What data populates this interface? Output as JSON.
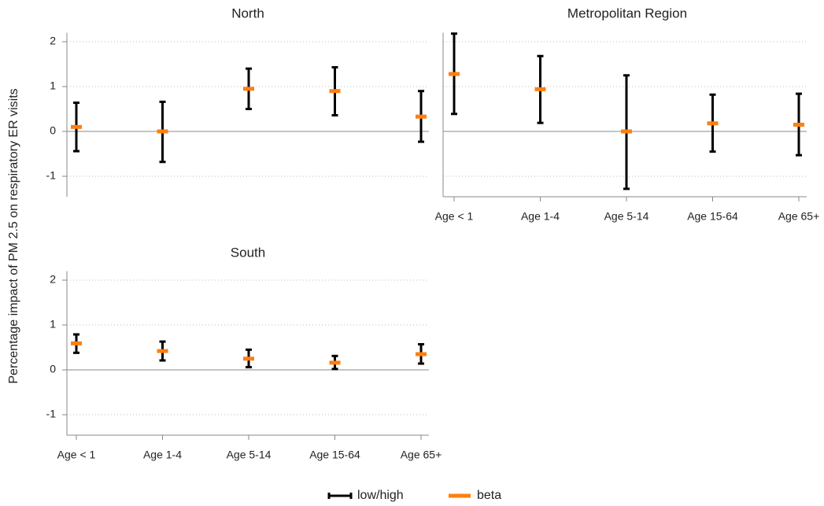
{
  "chart_data": [
    {
      "type": "errorbar",
      "title": "North",
      "ylabel": "Percentage impact of PM 2.5 on respiratory ER visits",
      "ylim": [
        -1.46,
        2.2
      ],
      "yticks": [
        -1,
        0,
        1,
        2
      ],
      "grid": true,
      "series": [
        {
          "name": "low/high",
          "color": "#000000",
          "low": [
            -0.44,
            -0.68,
            0.5,
            0.36,
            -0.23
          ],
          "high": [
            0.64,
            0.66,
            1.4,
            1.43,
            0.9
          ]
        },
        {
          "name": "beta",
          "color": "#ff7f0e",
          "values": [
            0.1,
            0.0,
            0.95,
            0.9,
            0.33
          ]
        }
      ]
    },
    {
      "type": "errorbar",
      "title": "Metropolitan Region",
      "categories": [
        "Age < 1",
        "Age 1-4",
        "Age 5-14",
        "Age 15-64",
        "Age 65+"
      ],
      "ylim": [
        -1.46,
        2.2
      ],
      "yticks": [
        -1,
        0,
        1,
        2
      ],
      "grid": true,
      "series": [
        {
          "name": "low/high",
          "color": "#000000",
          "low": [
            0.39,
            0.19,
            -1.28,
            -0.45,
            -0.53
          ],
          "high": [
            2.18,
            1.68,
            1.25,
            0.82,
            0.84
          ]
        },
        {
          "name": "beta",
          "color": "#ff7f0e",
          "values": [
            1.28,
            0.94,
            0.0,
            0.18,
            0.15
          ]
        }
      ]
    },
    {
      "type": "errorbar",
      "title": "South",
      "categories": [
        "Age < 1",
        "Age 1-4",
        "Age 5-14",
        "Age 15-64",
        "Age 65+"
      ],
      "ylim": [
        -1.46,
        2.2
      ],
      "yticks": [
        -1,
        0,
        1,
        2
      ],
      "grid": true,
      "series": [
        {
          "name": "low/high",
          "color": "#000000",
          "low": [
            0.38,
            0.21,
            0.06,
            0.02,
            0.14
          ],
          "high": [
            0.79,
            0.63,
            0.45,
            0.31,
            0.57
          ]
        },
        {
          "name": "beta",
          "color": "#ff7f0e",
          "values": [
            0.59,
            0.42,
            0.25,
            0.16,
            0.35
          ]
        }
      ]
    }
  ]
}
